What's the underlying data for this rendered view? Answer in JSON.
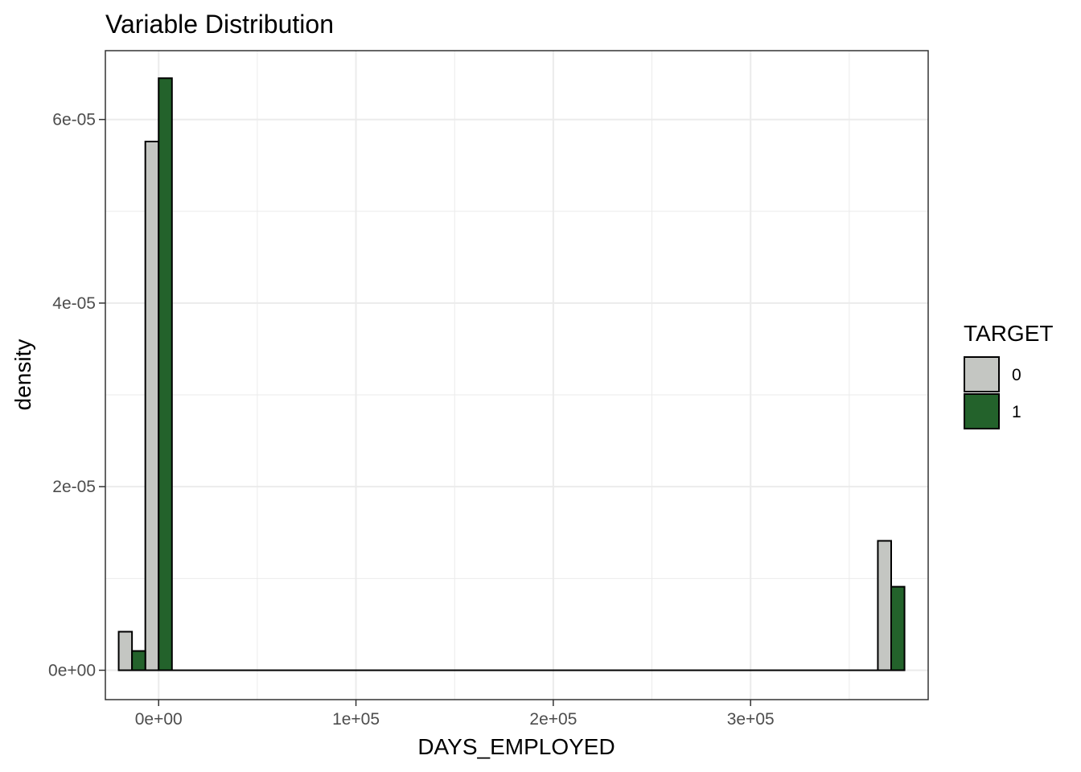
{
  "chart_data": {
    "type": "bar",
    "title": "Variable Distribution",
    "xlabel": "DAYS_EMPLOYED",
    "ylabel": "density",
    "xlim": [
      -27000,
      390000
    ],
    "ylim": [
      -3.2e-06,
      6.75e-05
    ],
    "x_ticks": [
      {
        "value": 0,
        "label": "0e+00"
      },
      {
        "value": 100000,
        "label": "1e+05"
      },
      {
        "value": 200000,
        "label": "2e+05"
      },
      {
        "value": 300000,
        "label": "3e+05"
      }
    ],
    "y_ticks": [
      {
        "value": 0,
        "label": "0e+00"
      },
      {
        "value": 2e-05,
        "label": "2e-05"
      },
      {
        "value": 4e-05,
        "label": "4e-05"
      },
      {
        "value": 6e-05,
        "label": "6e-05"
      }
    ],
    "grid": true,
    "bin_width": 13500,
    "legend": {
      "title": "TARGET",
      "position": "right"
    },
    "series": [
      {
        "name": "0",
        "color": "#c4c6c2",
        "bars": [
          {
            "x_min": -20250,
            "x_max": -13500,
            "y": 4.2e-06
          },
          {
            "x_min": -6750,
            "x_max": 0,
            "y": 5.76e-05
          },
          {
            "x_min": 364500,
            "x_max": 371250,
            "y": 1.41e-05
          }
        ]
      },
      {
        "name": "1",
        "color": "#23622b",
        "bars": [
          {
            "x_min": -13500,
            "x_max": -6750,
            "y": 2.1e-06
          },
          {
            "x_min": 0,
            "x_max": 6750,
            "y": 6.45e-05
          },
          {
            "x_min": 371250,
            "x_max": 378000,
            "y": 9.1e-06
          }
        ]
      }
    ]
  }
}
